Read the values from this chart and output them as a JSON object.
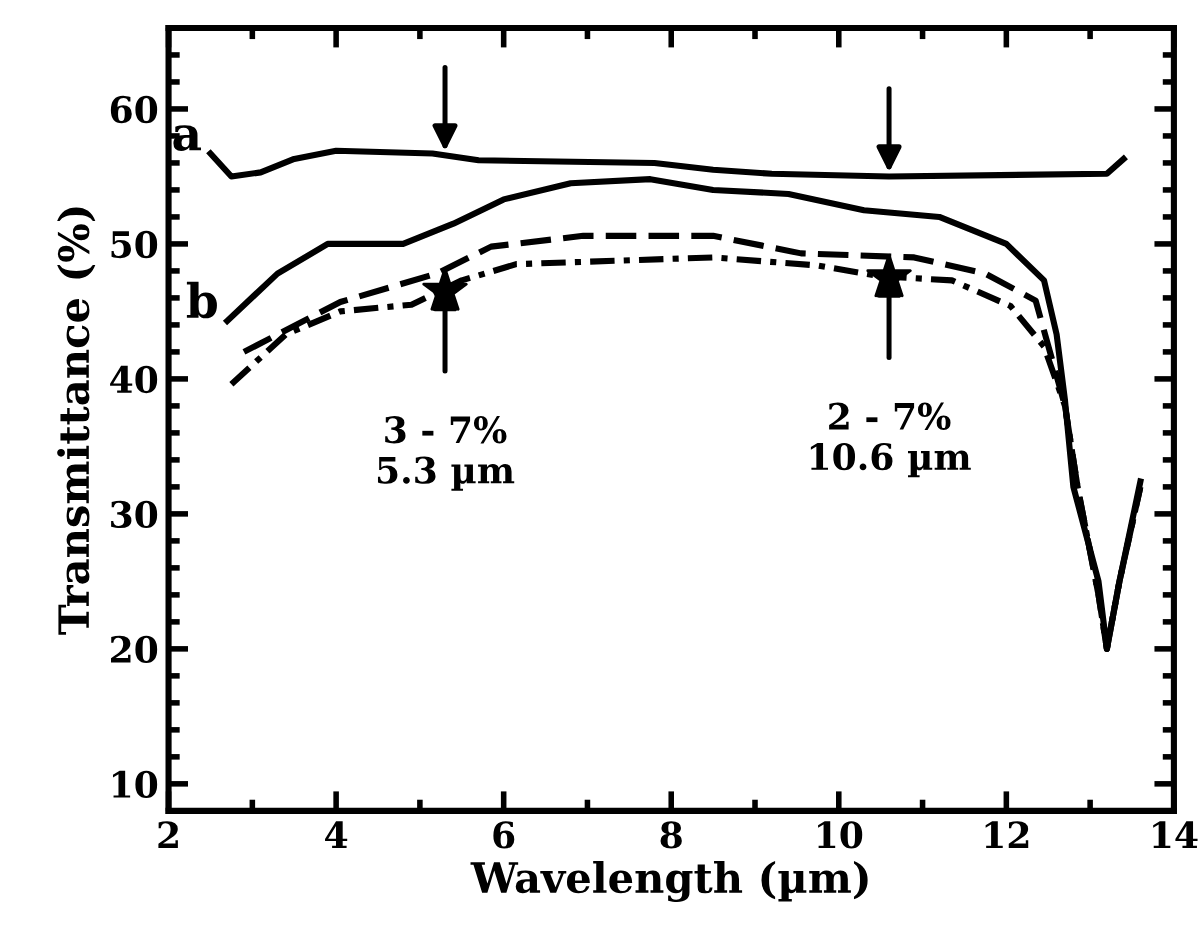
{
  "chart_data": {
    "type": "line",
    "xlabel": "Wavelength (µm)",
    "ylabel": "Transmittance (%)",
    "xlim": [
      2,
      14
    ],
    "ylim": [
      8,
      66
    ],
    "xticks": [
      2,
      4,
      6,
      8,
      10,
      12,
      14
    ],
    "yticks": [
      10,
      20,
      30,
      40,
      50,
      60
    ],
    "grid": false,
    "legend": false,
    "marker": "none",
    "series": [
      {
        "name": "a",
        "color": "#000000",
        "line_style": "solid",
        "x": [
          2.5,
          2.75,
          3.1,
          3.5,
          4.0,
          5.15,
          5.7,
          7.8,
          8.5,
          9.2,
          10.6,
          13.2,
          13.4
        ],
        "values": [
          56.7,
          55,
          55.3,
          56.3,
          56.9,
          56.7,
          56.2,
          56,
          55.5,
          55.2,
          55,
          55.2,
          56.3
        ]
      },
      {
        "name": "b",
        "color": "#000000",
        "line_style": "solid",
        "x": [
          2.7,
          3.3,
          3.9,
          4.8,
          5.4,
          6.0,
          6.8,
          7.75,
          8.5,
          9.4,
          10.3,
          11.2,
          12.0,
          12.45,
          12.6,
          12.7,
          12.8,
          13.1,
          13.2,
          13.35,
          13.6
        ],
        "values": [
          44.3,
          47.8,
          50,
          50,
          51.5,
          53.3,
          54.5,
          54.8,
          54,
          53.7,
          52.5,
          52,
          50,
          47.3,
          43.3,
          38.4,
          32,
          25,
          20,
          25,
          32.4
        ]
      },
      {
        "color": "#000000",
        "line_style": "dashed",
        "x": [
          2.9,
          4.05,
          5.2,
          5.85,
          6.95,
          8.5,
          9.55,
          10.9,
          11.75,
          12.35,
          12.7,
          12.85,
          13.1,
          13.2,
          13.35,
          13.6
        ],
        "values": [
          42,
          45.7,
          47.8,
          49.8,
          50.6,
          50.6,
          49.3,
          49,
          47.8,
          45.8,
          38,
          32,
          24,
          20,
          25,
          32
        ]
      },
      {
        "color": "#000000",
        "line_style": "dotted",
        "x": [
          2.75,
          3.4,
          4.05,
          4.9,
          5.5,
          6.15,
          8.5,
          9.75,
          10.5,
          11.35,
          12.05,
          12.45,
          12.7,
          12.85,
          13.1,
          13.2,
          13.35,
          13.6
        ],
        "values": [
          39.6,
          43.3,
          45,
          45.5,
          47.3,
          48.5,
          49,
          48.4,
          47.6,
          47.3,
          45.4,
          42.4,
          38,
          32,
          24,
          20,
          25,
          32
        ]
      },
      {
        "type": "scatter",
        "marker": "star",
        "color": "#000000",
        "x": [
          5.3,
          10.6
        ],
        "values": [
          46.5,
          47.5
        ]
      }
    ],
    "annotations": [
      {
        "text": "3 - 7%\n5.3 µm",
        "x": 5.3,
        "y": 46.5
      },
      {
        "text": "2 - 7%\n10.6 µm",
        "x": 10.6,
        "y": 47.5
      }
    ]
  }
}
